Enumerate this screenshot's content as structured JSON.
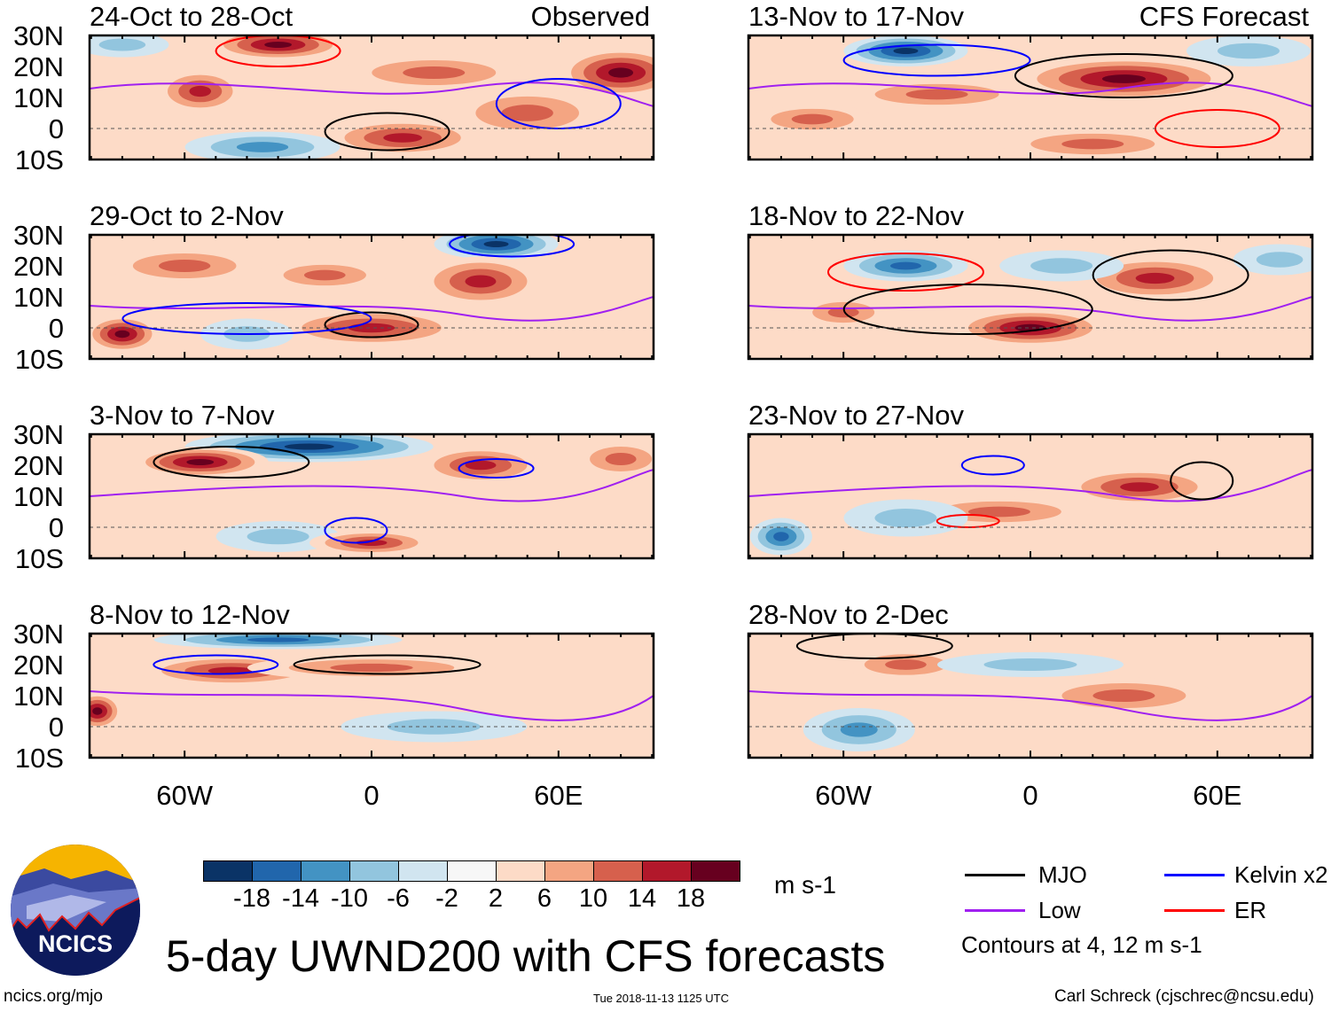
{
  "panels": [
    {
      "title": "24-Oct to 28-Oct",
      "tag": "Observed",
      "column": "left"
    },
    {
      "title": "29-Oct to 2-Nov",
      "column": "left"
    },
    {
      "title": "3-Nov to 7-Nov",
      "column": "left"
    },
    {
      "title": "8-Nov to 12-Nov",
      "column": "left"
    },
    {
      "title": "13-Nov to 17-Nov",
      "tag": "CFS Forecast",
      "column": "right"
    },
    {
      "title": "18-Nov to 22-Nov",
      "column": "right"
    },
    {
      "title": "23-Nov to 27-Nov",
      "column": "right"
    },
    {
      "title": "28-Nov to 2-Dec",
      "column": "right"
    }
  ],
  "lat_labels": [
    "30N",
    "20N",
    "10N",
    "0",
    "10S"
  ],
  "lon_labels": [
    "60W",
    "0",
    "60E"
  ],
  "colorbar": {
    "colors": [
      "#0a3366",
      "#2166ac",
      "#4393c3",
      "#92c5de",
      "#d1e5f0",
      "#f7f7f7",
      "#fddbc7",
      "#f4a582",
      "#d6604d",
      "#b2182b",
      "#67001f"
    ],
    "labels": [
      "-18",
      "-14",
      "-10",
      "-6",
      "-2",
      "2",
      "6",
      "10",
      "14",
      "18"
    ],
    "units": "m s-1"
  },
  "legend": {
    "items": [
      {
        "label": "MJO",
        "color": "#000000"
      },
      {
        "label": "Kelvin x2",
        "color": "#0000ff"
      },
      {
        "label": "Low",
        "color": "#a020f0"
      },
      {
        "label": "ER",
        "color": "#ff0000"
      }
    ],
    "note": "Contours at 4, 12 m s-1"
  },
  "title": "5-day UWND200 with CFS forecasts",
  "logo_text": "NCICS",
  "footer": {
    "url": "ncics.org/mjo",
    "timestamp": "Tue 2018-11-13 1125 UTC",
    "credit": "Carl Schreck (cjschrec@ncsu.edu)"
  }
}
